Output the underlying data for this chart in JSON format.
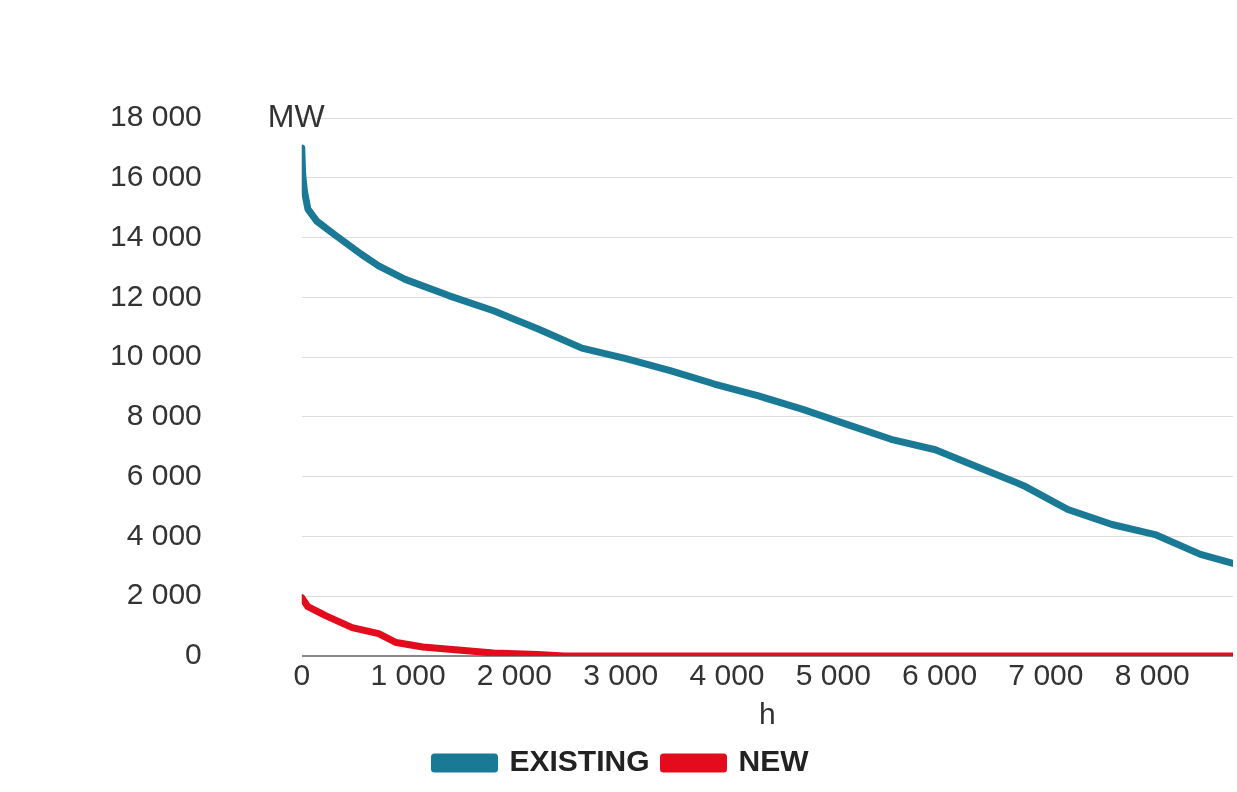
{
  "chart_data": {
    "type": "line",
    "xlabel": "h",
    "ylabel": "MW",
    "xlim": [
      0,
      8760
    ],
    "xticks": [
      0,
      1000,
      2000,
      3000,
      4000,
      5000,
      6000,
      7000,
      8000
    ],
    "ylim": [
      0,
      18000
    ],
    "yticks": [
      0,
      2000,
      4000,
      6000,
      8000,
      10000,
      12000,
      14000,
      16000,
      18000
    ],
    "grid": "y",
    "legend": "bottom",
    "marker": "none",
    "line_style": "solid",
    "series": [
      {
        "name": "EXISTING",
        "color": "#1a7a96",
        "x": [
          0,
          8,
          25,
          58,
          141,
          307,
          557,
          723,
          973,
          1388,
          1804,
          2219,
          2635,
          3050,
          3466,
          3882,
          4297,
          4713,
          5128,
          5544,
          5960,
          6375,
          6791,
          7207,
          7622,
          8038,
          8454,
          8760
        ],
        "values": [
          17000,
          16150,
          15550,
          14950,
          14550,
          14100,
          13450,
          13050,
          12600,
          12050,
          11550,
          10950,
          10300,
          9950,
          9550,
          9100,
          8700,
          8250,
          7750,
          7250,
          6900,
          6300,
          5700,
          4900,
          4400,
          4050,
          3400,
          3100
        ]
      },
      {
        "name": "NEW",
        "color": "#e30b1c",
        "x": [
          0,
          58,
          224,
          474,
          723,
          889,
          1139,
          1471,
          1804,
          2219,
          2468,
          8760
        ],
        "values": [
          1950,
          1650,
          1350,
          950,
          750,
          450,
          300,
          200,
          100,
          50,
          0,
          0
        ]
      }
    ]
  }
}
